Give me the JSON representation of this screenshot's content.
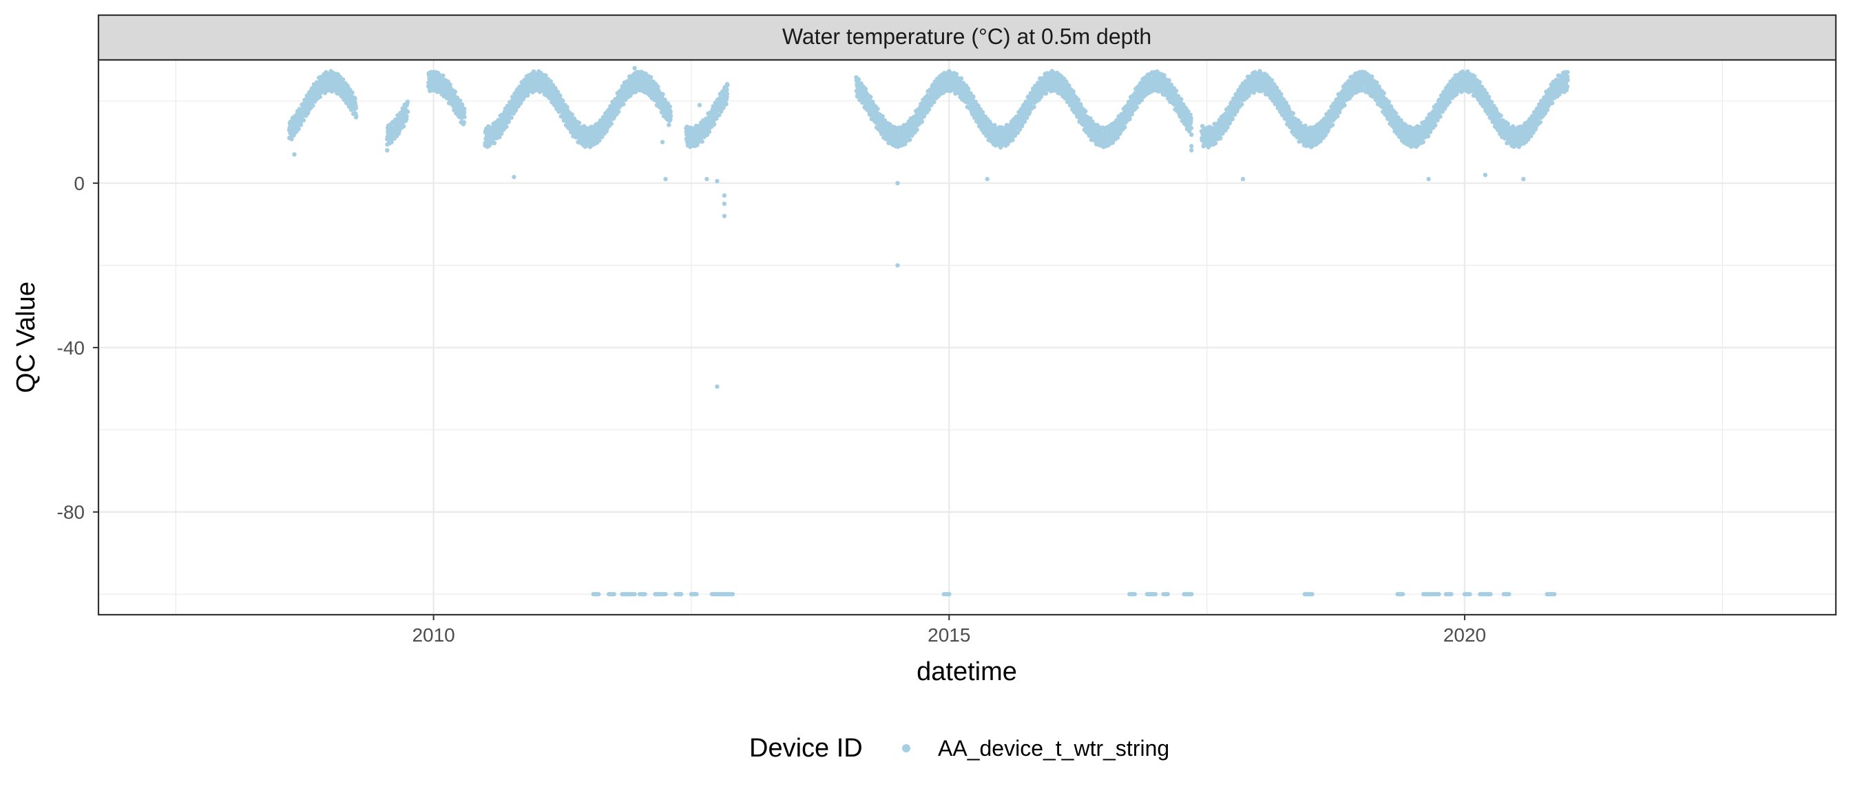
{
  "chart_data": {
    "type": "scatter",
    "facet_title": "Water temperature (°C) at 0.5m depth",
    "xlabel": "datetime",
    "ylabel": "QC Value",
    "xlim": [
      2006.75,
      2023.6
    ],
    "ylim": [
      -105,
      30
    ],
    "x_ticks": [
      2010,
      2015,
      2020
    ],
    "x_tick_labels": [
      "2010",
      "2015",
      "2020"
    ],
    "y_ticks": [
      0,
      -40,
      -80
    ],
    "y_tick_labels": [
      "0",
      "-40",
      "-80"
    ],
    "grid": true,
    "legend": {
      "title": "Device ID",
      "position": "bottom",
      "entries": [
        {
          "label": "AA_device_t_wtr_string",
          "color": "#a6cee3"
        }
      ]
    },
    "colors": {
      "points": "#a6cee3",
      "strip": "#d9d9d9",
      "grid": "#ebebeb"
    },
    "series": [
      {
        "name": "AA_device_t_wtr_string",
        "segments": [
          [
            2008.6,
            2009.25
          ],
          [
            2009.55,
            2009.75
          ],
          [
            2009.95,
            2010.3
          ],
          [
            2010.5,
            2012.3
          ],
          [
            2012.45,
            2012.85
          ],
          [
            2014.1,
            2017.35
          ],
          [
            2017.45,
            2021.0
          ]
        ],
        "outliers": [
          {
            "x": 2008.65,
            "y": 7
          },
          {
            "x": 2009.55,
            "y": 8
          },
          {
            "x": 2010.78,
            "y": 1.5
          },
          {
            "x": 2011.95,
            "y": 28
          },
          {
            "x": 2012.22,
            "y": 10
          },
          {
            "x": 2012.25,
            "y": 1
          },
          {
            "x": 2012.58,
            "y": 19
          },
          {
            "x": 2012.65,
            "y": 1
          },
          {
            "x": 2012.75,
            "y": 0.5
          },
          {
            "x": 2012.82,
            "y": -3
          },
          {
            "x": 2012.82,
            "y": -5
          },
          {
            "x": 2012.82,
            "y": -8
          },
          {
            "x": 2012.75,
            "y": -49.5
          },
          {
            "x": 2014.5,
            "y": 0
          },
          {
            "x": 2014.5,
            "y": -20
          },
          {
            "x": 2015.37,
            "y": 1
          },
          {
            "x": 2017.35,
            "y": 8
          },
          {
            "x": 2017.35,
            "y": 9
          },
          {
            "x": 2017.85,
            "y": 1
          },
          {
            "x": 2019.65,
            "y": 1
          },
          {
            "x": 2020.2,
            "y": 2
          },
          {
            "x": 2020.57,
            "y": 1
          }
        ],
        "flag_value": -100,
        "flag_ranges": [
          [
            2011.55,
            2011.6
          ],
          [
            2011.7,
            2011.75
          ],
          [
            2011.83,
            2011.95
          ],
          [
            2012.0,
            2012.05
          ],
          [
            2012.15,
            2012.25
          ],
          [
            2012.35,
            2012.4
          ],
          [
            2012.5,
            2012.55
          ],
          [
            2012.7,
            2012.9
          ],
          [
            2014.95,
            2015.0
          ],
          [
            2016.75,
            2016.8
          ],
          [
            2016.92,
            2017.0
          ],
          [
            2017.08,
            2017.12
          ],
          [
            2017.28,
            2017.35
          ],
          [
            2018.45,
            2018.52
          ],
          [
            2019.35,
            2019.4
          ],
          [
            2019.6,
            2019.75
          ],
          [
            2019.82,
            2019.87
          ],
          [
            2020.0,
            2020.05
          ],
          [
            2020.15,
            2020.25
          ],
          [
            2020.38,
            2020.43
          ],
          [
            2020.8,
            2020.87
          ]
        ]
      }
    ]
  }
}
